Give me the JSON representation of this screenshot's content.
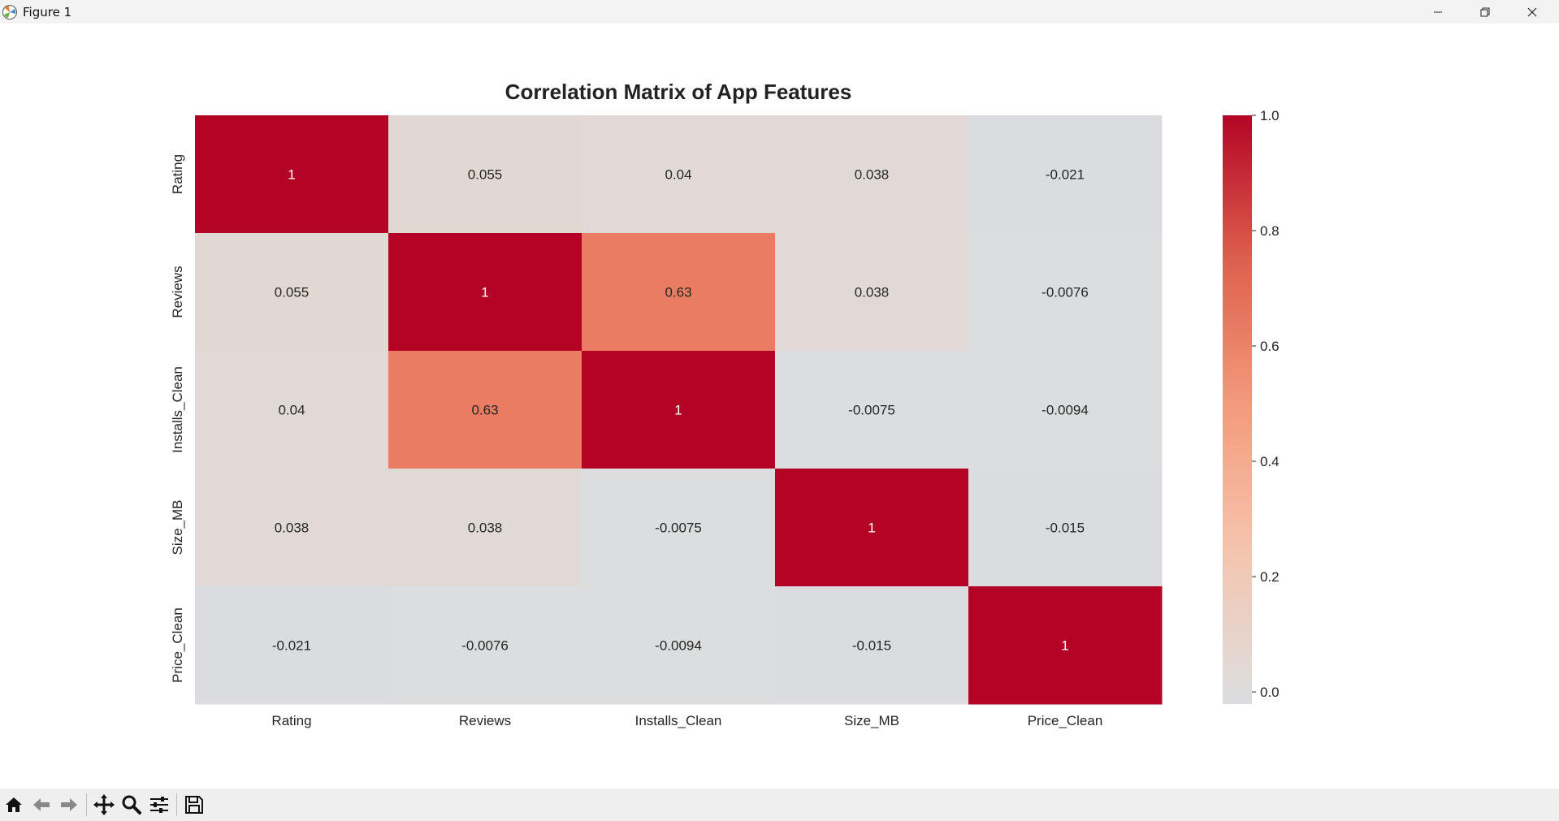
{
  "window": {
    "title": "Figure 1",
    "icons": {
      "app": "matplotlib-icon",
      "minimize": "minimize-icon",
      "maximize": "restore-icon",
      "close": "close-icon"
    }
  },
  "toolbar": {
    "buttons": [
      {
        "name": "home-button",
        "icon": "home-icon"
      },
      {
        "name": "back-button",
        "icon": "arrow-left-icon"
      },
      {
        "name": "forward-button",
        "icon": "arrow-right-icon"
      },
      {
        "name": "pan-button",
        "icon": "move-icon"
      },
      {
        "name": "zoom-button",
        "icon": "magnifier-icon"
      },
      {
        "name": "configure-subplots-button",
        "icon": "sliders-icon"
      },
      {
        "name": "save-button",
        "icon": "floppy-disk-icon"
      }
    ]
  },
  "chart_data": {
    "type": "heatmap",
    "title": "Correlation Matrix of App Features",
    "x_labels": [
      "Rating",
      "Reviews",
      "Installs_Clean",
      "Size_MB",
      "Price_Clean"
    ],
    "y_labels": [
      "Rating",
      "Reviews",
      "Installs_Clean",
      "Size_MB",
      "Price_Clean"
    ],
    "values": [
      [
        1,
        0.055,
        0.04,
        0.038,
        -0.021
      ],
      [
        0.055,
        1,
        0.63,
        0.038,
        -0.0076
      ],
      [
        0.04,
        0.63,
        1,
        -0.0075,
        -0.0094
      ],
      [
        0.038,
        0.038,
        -0.0075,
        1,
        -0.015
      ],
      [
        -0.021,
        -0.0076,
        -0.0094,
        -0.015,
        1
      ]
    ],
    "annotations": [
      [
        "1",
        "0.055",
        "0.04",
        "0.038",
        "-0.021"
      ],
      [
        "0.055",
        "1",
        "0.63",
        "0.038",
        "-0.0076"
      ],
      [
        "0.04",
        "0.63",
        "1",
        "-0.0075",
        "-0.0094"
      ],
      [
        "0.038",
        "0.038",
        "-0.0075",
        "1",
        "-0.015"
      ],
      [
        "-0.021",
        "-0.0076",
        "-0.0094",
        "-0.015",
        "1"
      ]
    ],
    "colormap": "coolwarm",
    "vmin": -1,
    "vmax": 1,
    "colorbar": {
      "range": [
        -0.021,
        1.0
      ],
      "ticks": [
        0.0,
        0.2,
        0.4,
        0.6,
        0.8,
        1.0
      ],
      "tick_labels": [
        "0.0",
        "0.2",
        "0.4",
        "0.6",
        "0.8",
        "1.0"
      ]
    }
  }
}
